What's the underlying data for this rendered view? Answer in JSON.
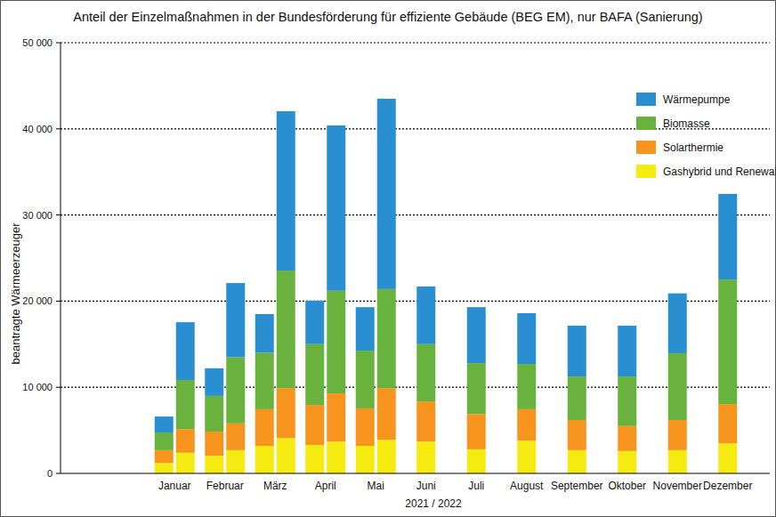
{
  "chart_data": {
    "type": "bar",
    "title": "Anteil der Einzelmaßnahmen in der Bundesförderung für effiziente Gebäude (BEG EM), nur BAFA (Sanierung)",
    "y_label": "beantragte Wärmeerzeuger",
    "x_label": "2021 / 2022",
    "categories": [
      "Januar",
      "Februar",
      "März",
      "April",
      "Mai",
      "Juni",
      "Juli",
      "August",
      "September",
      "Oktober",
      "November",
      "Dezember"
    ],
    "series": [
      {
        "name": "Wärmepumpe",
        "color": "#2a8fd0",
        "values": [
          1850,
          3200,
          4500,
          5050,
          5050,
          6700,
          6500,
          5900,
          5900,
          5900,
          6950,
          9950
        ],
        "values_2022": [
          6700,
          8600,
          18500,
          19200,
          22100,
          null,
          null,
          null,
          null,
          null,
          null,
          null
        ]
      },
      {
        "name": "Biomasse",
        "color": "#6ab23e",
        "values": [
          2050,
          4150,
          6550,
          7050,
          6700,
          6650,
          5900,
          5250,
          5050,
          5750,
          7750,
          14450
        ],
        "values_2022": [
          5700,
          7700,
          13650,
          11900,
          11500,
          null,
          null,
          null,
          null,
          null,
          null,
          null
        ]
      },
      {
        "name": "Solarthermie",
        "color": "#f7941d",
        "values": [
          1500,
          2800,
          4250,
          4650,
          4350,
          4650,
          4100,
          3650,
          3500,
          2900,
          3500,
          4550
        ],
        "values_2022": [
          2750,
          3100,
          5800,
          5600,
          6000,
          null,
          null,
          null,
          null,
          null,
          null,
          null
        ]
      },
      {
        "name": "Gashybrid und Renewable-Ready",
        "color": "#f5eb10",
        "values": [
          1200,
          2050,
          3200,
          3300,
          3200,
          3700,
          2800,
          3800,
          2700,
          2600,
          2700,
          3500
        ],
        "values_2022": [
          2400,
          2700,
          4100,
          3700,
          3900,
          null,
          null,
          null,
          null,
          null,
          null,
          null
        ]
      }
    ],
    "ylim": [
      0,
      50000
    ],
    "yticks": [
      0,
      {
        "value": 10000,
        "label": "10 000"
      },
      {
        "value": 20000,
        "label": "20 000"
      },
      {
        "value": 30000,
        "label": "30 000"
      },
      {
        "value": 40000,
        "label": "40 000"
      },
      {
        "value": 50000,
        "label": "50 000"
      }
    ],
    "stacked": true,
    "grid": true,
    "legend": "top-right"
  }
}
